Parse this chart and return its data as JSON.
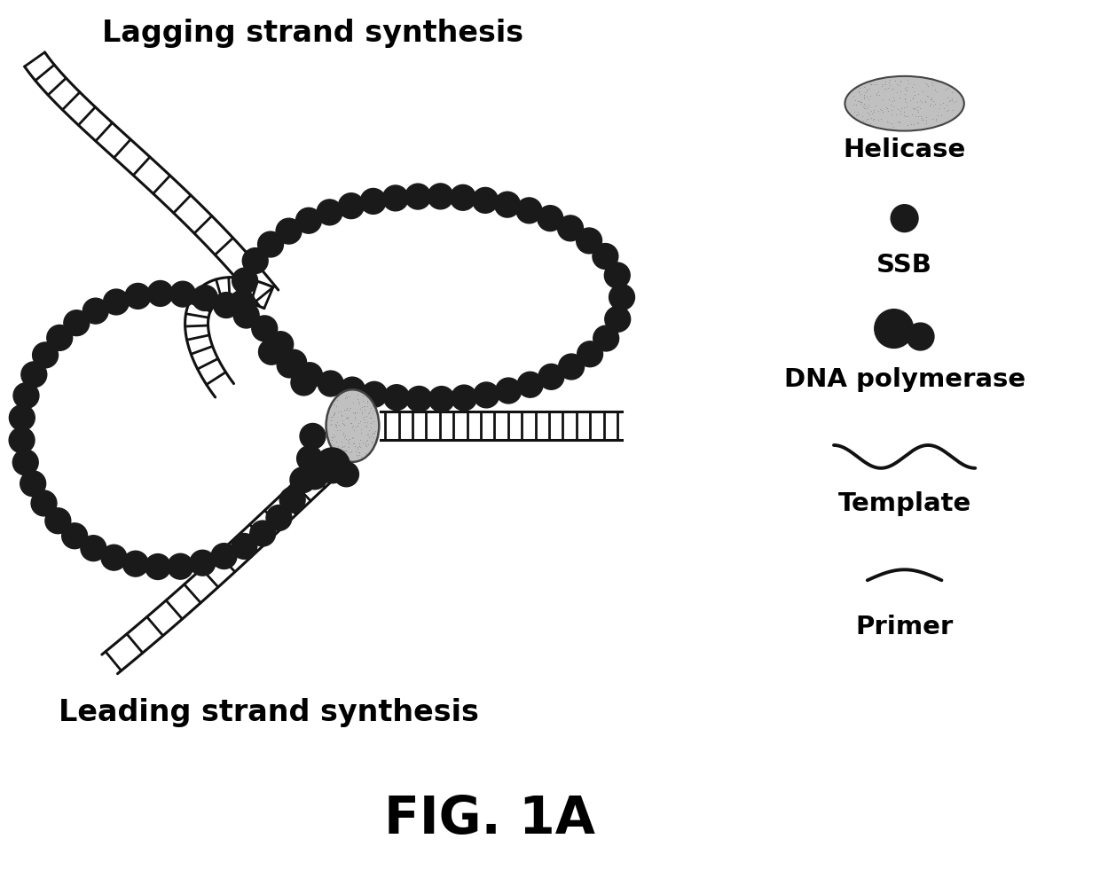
{
  "title": "FIG. 1A",
  "lagging_label": "Lagging strand synthesis",
  "leading_label": "Leading strand synthesis",
  "legend_items": [
    "Helicase",
    "SSB",
    "DNA polymerase",
    "Template",
    "Primer"
  ],
  "bg_color": "#ffffff",
  "dna_color": "#111111",
  "bead_color": "#1a1a1a",
  "title_fontsize": 42,
  "label_fontsize": 24,
  "legend_fontsize": 21
}
